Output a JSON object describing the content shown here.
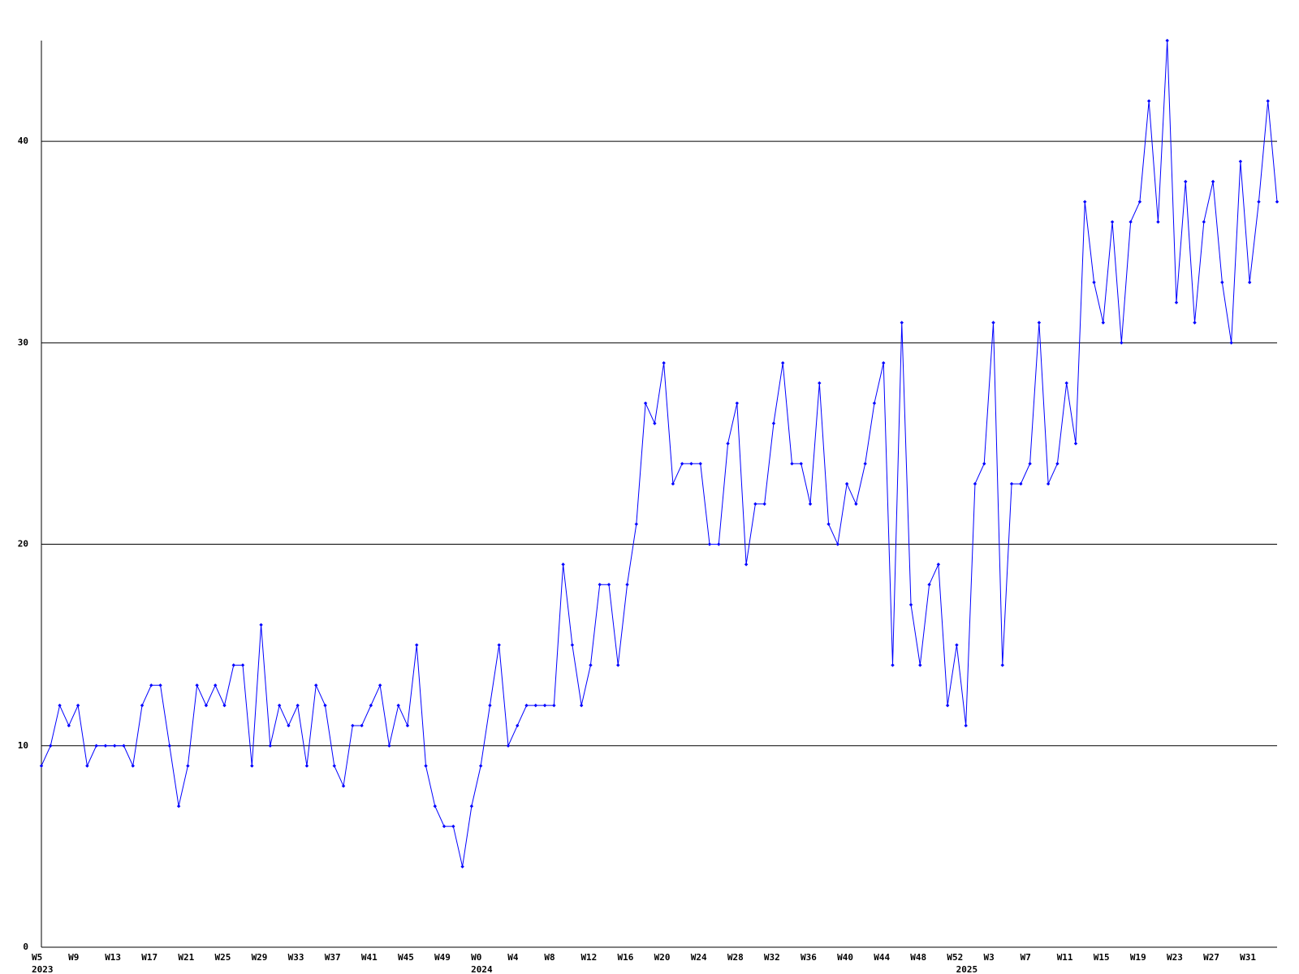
{
  "chart_data": {
    "type": "line",
    "categories": [
      "W5",
      null,
      null,
      null,
      "W9",
      null,
      null,
      null,
      "W13",
      null,
      null,
      null,
      "W17",
      null,
      null,
      null,
      "W21",
      null,
      null,
      null,
      "W25",
      null,
      null,
      null,
      "W29",
      null,
      null,
      null,
      "W33",
      null,
      null,
      null,
      "W37",
      null,
      null,
      null,
      "W41",
      null,
      null,
      null,
      "W45",
      null,
      null,
      null,
      "W49",
      null,
      null,
      null,
      "W0",
      null,
      null,
      null,
      "W4",
      null,
      null,
      null,
      "W8",
      null,
      null,
      null,
      "W12",
      null,
      null,
      null,
      "W16",
      null,
      null,
      null,
      "W20",
      null,
      null,
      null,
      "W24",
      null,
      null,
      null,
      "W28",
      null,
      null,
      null,
      "W32",
      null,
      null,
      null,
      "W36",
      null,
      null,
      null,
      "W40",
      null,
      null,
      null,
      "W44",
      null,
      null,
      null,
      "W48",
      null,
      null,
      null,
      "W52",
      null,
      null,
      null,
      "W3",
      null,
      null,
      null,
      "W7",
      null,
      null,
      null,
      "W11",
      null,
      null,
      null,
      "W15",
      null,
      null,
      null,
      "W19",
      null,
      null,
      null,
      "W23",
      null,
      null,
      null,
      "W27",
      null,
      null,
      null,
      "W31",
      null,
      null,
      null
    ],
    "category_groups": [
      {
        "label": "2023",
        "start": 0
      },
      {
        "label": "2024",
        "start": 48
      },
      {
        "label": "2025",
        "start": 101
      }
    ],
    "series": [
      {
        "color": "#0000ff",
        "values": [
          9,
          10,
          12,
          11,
          12,
          9,
          10,
          10,
          10,
          10,
          9,
          12,
          13,
          13,
          10,
          7,
          9,
          13,
          12,
          13,
          12,
          14,
          14,
          9,
          16,
          10,
          12,
          11,
          12,
          9,
          13,
          12,
          9,
          8,
          11,
          11,
          12,
          13,
          10,
          12,
          11,
          15,
          9,
          7,
          6,
          6,
          4,
          7,
          9,
          12,
          15,
          10,
          11,
          12,
          12,
          12,
          12,
          19,
          15,
          12,
          14,
          18,
          18,
          14,
          18,
          21,
          27,
          26,
          29,
          23,
          24,
          24,
          24,
          20,
          20,
          25,
          27,
          19,
          22,
          22,
          26,
          29,
          24,
          24,
          22,
          28,
          21,
          20,
          23,
          22,
          24,
          27,
          29,
          14,
          31,
          17,
          14,
          18,
          19,
          12,
          15,
          11,
          23,
          24,
          31,
          14,
          23,
          23,
          24,
          31,
          23,
          24,
          28,
          25,
          37,
          33,
          31,
          36,
          30,
          36,
          37,
          42,
          36,
          45,
          32,
          38,
          31,
          36,
          38,
          33,
          30,
          39,
          33,
          37,
          42,
          37
        ]
      }
    ],
    "ylim": [
      0,
      45
    ],
    "yticks": [
      0,
      10,
      20,
      30,
      40
    ],
    "grid": true
  }
}
